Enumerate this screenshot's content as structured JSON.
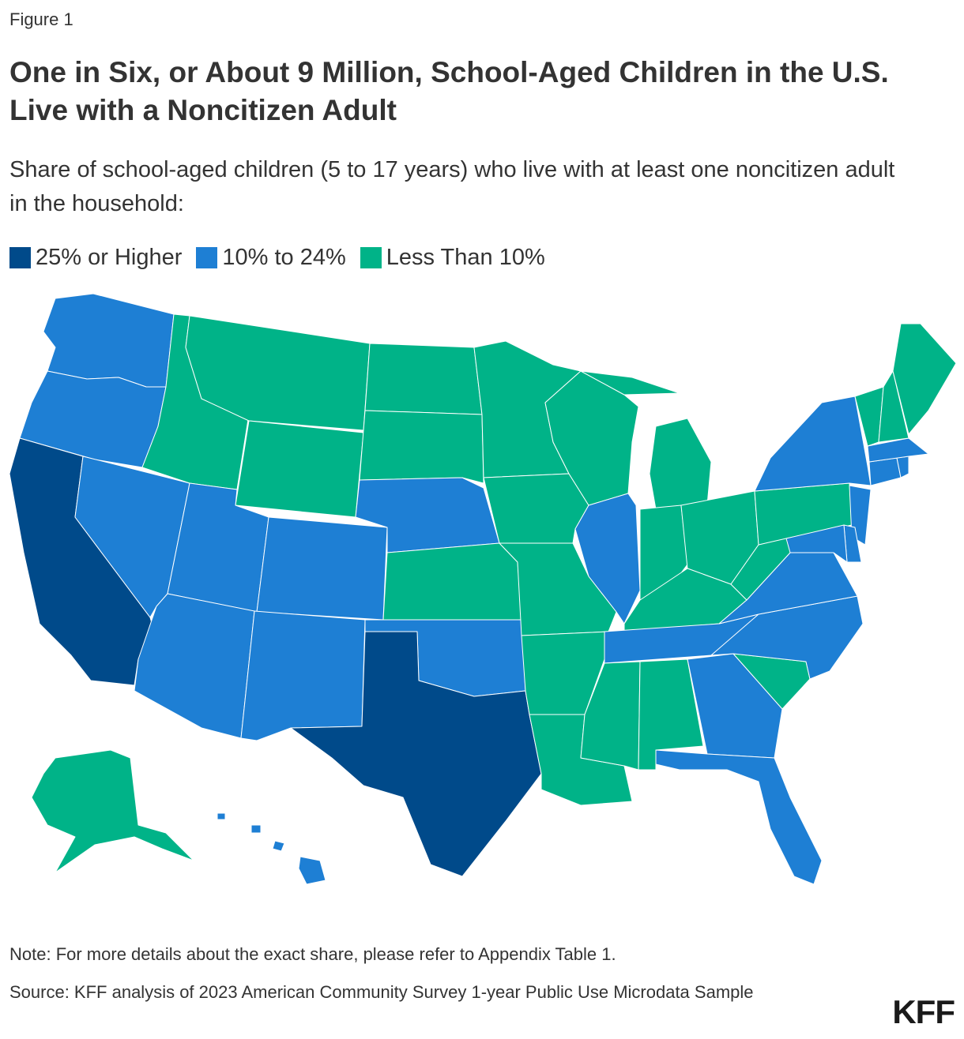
{
  "figure_label": "Figure 1",
  "title": "One in Six, or About 9 Million, School-Aged Children in the U.S. Live with a Noncitizen Adult",
  "subtitle": "Share of school-aged children (5 to 17 years) who live with at least one noncitizen adult in the household:",
  "legend": [
    {
      "label": "25% or Higher",
      "color": "#004a8a"
    },
    {
      "label": "10% to 24%",
      "color": "#1e7fd4"
    },
    {
      "label": "Less Than 10%",
      "color": "#00b388"
    }
  ],
  "chart_data": {
    "type": "choropleth",
    "categories": {
      "high": "25% or Higher",
      "mid": "10% to 24%",
      "low": "Less Than 10%"
    },
    "states": {
      "WA": "mid",
      "OR": "mid",
      "CA": "high",
      "NV": "mid",
      "ID": "low",
      "MT": "low",
      "WY": "low",
      "UT": "mid",
      "CO": "mid",
      "AZ": "mid",
      "NM": "mid",
      "ND": "low",
      "SD": "low",
      "NE": "mid",
      "KS": "low",
      "OK": "mid",
      "TX": "high",
      "MN": "low",
      "IA": "low",
      "MO": "low",
      "AR": "low",
      "LA": "low",
      "WI": "low",
      "IL": "mid",
      "MI": "low",
      "IN": "low",
      "OH": "low",
      "KY": "low",
      "TN": "mid",
      "MS": "low",
      "AL": "low",
      "GA": "mid",
      "FL": "mid",
      "SC": "low",
      "NC": "mid",
      "VA": "mid",
      "WV": "low",
      "PA": "low",
      "NY": "mid",
      "NJ": "mid",
      "DE": "mid",
      "MD": "mid",
      "CT": "mid",
      "RI": "mid",
      "MA": "mid",
      "VT": "low",
      "NH": "low",
      "ME": "low",
      "AK": "low",
      "HI": "mid"
    }
  },
  "note": "Note: For more details about the exact share, please refer to Appendix Table 1.",
  "source": "Source: KFF analysis of 2023 American Community Survey 1-year Public Use Microdata Sample",
  "logo": "KFF"
}
